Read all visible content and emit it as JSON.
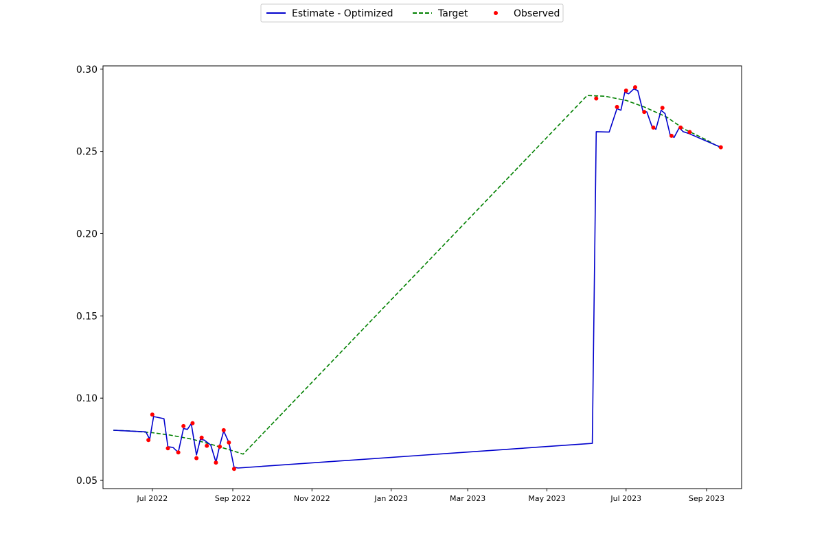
{
  "chart_data": {
    "type": "line",
    "title": "",
    "xlabel": "",
    "ylabel": "",
    "xlim": [
      "2022-05-24",
      "2023-09-28"
    ],
    "ylim": [
      0.045,
      0.302
    ],
    "x_ticks": [
      {
        "date": "2022-07-01",
        "label": "Jul 2022"
      },
      {
        "date": "2022-09-01",
        "label": "Sep 2022"
      },
      {
        "date": "2022-11-01",
        "label": "Nov 2022"
      },
      {
        "date": "2023-01-01",
        "label": "Jan 2023"
      },
      {
        "date": "2023-03-01",
        "label": "Mar 2023"
      },
      {
        "date": "2023-05-01",
        "label": "May 2023"
      },
      {
        "date": "2023-07-01",
        "label": "Jul 2023"
      },
      {
        "date": "2023-09-01",
        "label": "Sep 2023"
      }
    ],
    "y_ticks": [
      {
        "value": 0.05,
        "label": "0.05"
      },
      {
        "value": 0.1,
        "label": "0.10"
      },
      {
        "value": 0.15,
        "label": "0.15"
      },
      {
        "value": 0.2,
        "label": "0.20"
      },
      {
        "value": 0.25,
        "label": "0.25"
      },
      {
        "value": 0.3,
        "label": "0.30"
      }
    ],
    "grid": false,
    "legend_position": "top-center",
    "series": [
      {
        "name": "Estimate - Optimized",
        "style": "solid",
        "color": "#0000cc",
        "points": [
          [
            "2022-06-01",
            0.0805
          ],
          [
            "2022-06-26",
            0.0795
          ],
          [
            "2022-06-29",
            0.075
          ],
          [
            "2022-07-02",
            0.0888
          ],
          [
            "2022-07-10",
            0.0875
          ],
          [
            "2022-07-13",
            0.0705
          ],
          [
            "2022-07-17",
            0.07
          ],
          [
            "2022-07-21",
            0.067
          ],
          [
            "2022-07-25",
            0.0815
          ],
          [
            "2022-07-28",
            0.081
          ],
          [
            "2022-07-31",
            0.0845
          ],
          [
            "2022-08-04",
            0.0655
          ],
          [
            "2022-08-07",
            0.075
          ],
          [
            "2022-08-10",
            0.0745
          ],
          [
            "2022-08-15",
            0.0715
          ],
          [
            "2022-08-19",
            0.061
          ],
          [
            "2022-08-22",
            0.0715
          ],
          [
            "2022-08-25",
            0.08
          ],
          [
            "2022-08-29",
            0.073
          ],
          [
            "2022-09-02",
            0.058
          ],
          [
            "2022-09-05",
            0.0575
          ],
          [
            "2023-06-05",
            0.0725
          ],
          [
            "2023-06-08",
            0.262
          ],
          [
            "2023-06-18",
            0.2618
          ],
          [
            "2023-06-24",
            0.276
          ],
          [
            "2023-06-27",
            0.275
          ],
          [
            "2023-06-30",
            0.286
          ],
          [
            "2023-07-03",
            0.285
          ],
          [
            "2023-07-07",
            0.288
          ],
          [
            "2023-07-10",
            0.287
          ],
          [
            "2023-07-14",
            0.2745
          ],
          [
            "2023-07-17",
            0.274
          ],
          [
            "2023-07-21",
            0.265
          ],
          [
            "2023-07-24",
            0.2635
          ],
          [
            "2023-07-28",
            0.275
          ],
          [
            "2023-07-31",
            0.273
          ],
          [
            "2023-08-04",
            0.26
          ],
          [
            "2023-08-07",
            0.2585
          ],
          [
            "2023-08-11",
            0.2645
          ],
          [
            "2023-08-14",
            0.262
          ],
          [
            "2023-08-18",
            0.261
          ],
          [
            "2023-09-12",
            0.2525
          ]
        ]
      },
      {
        "name": "Target",
        "style": "dashed",
        "color": "#008000",
        "points": [
          [
            "2022-06-01",
            0.0805
          ],
          [
            "2022-06-15",
            0.08
          ],
          [
            "2022-07-01",
            0.079
          ],
          [
            "2022-07-15",
            0.0775
          ],
          [
            "2022-08-01",
            0.075
          ],
          [
            "2022-08-15",
            0.072
          ],
          [
            "2022-09-01",
            0.068
          ],
          [
            "2022-09-09",
            0.066
          ],
          [
            "2023-06-01",
            0.284
          ],
          [
            "2023-06-15",
            0.2835
          ],
          [
            "2023-07-01",
            0.281
          ],
          [
            "2023-07-15",
            0.277
          ],
          [
            "2023-08-01",
            0.271
          ],
          [
            "2023-08-15",
            0.2635
          ],
          [
            "2023-09-01",
            0.257
          ],
          [
            "2023-09-12",
            0.252
          ]
        ]
      },
      {
        "name": "Observed",
        "style": "scatter",
        "color": "#ff0000",
        "points": [
          [
            "2022-06-28",
            0.0745
          ],
          [
            "2022-07-01",
            0.09
          ],
          [
            "2022-07-13",
            0.0695
          ],
          [
            "2022-07-21",
            0.067
          ],
          [
            "2022-07-25",
            0.083
          ],
          [
            "2022-08-01",
            0.0848
          ],
          [
            "2022-08-04",
            0.0635
          ],
          [
            "2022-08-08",
            0.076
          ],
          [
            "2022-08-12",
            0.071
          ],
          [
            "2022-08-19",
            0.0608
          ],
          [
            "2022-08-22",
            0.0705
          ],
          [
            "2022-08-25",
            0.0805
          ],
          [
            "2022-08-29",
            0.073
          ],
          [
            "2022-09-02",
            0.057
          ],
          [
            "2023-06-08",
            0.2822
          ],
          [
            "2023-06-24",
            0.277
          ],
          [
            "2023-07-01",
            0.287
          ],
          [
            "2023-07-08",
            0.289
          ],
          [
            "2023-07-15",
            0.274
          ],
          [
            "2023-07-22",
            0.2645
          ],
          [
            "2023-07-29",
            0.2765
          ],
          [
            "2023-08-05",
            0.2595
          ],
          [
            "2023-08-12",
            0.2645
          ],
          [
            "2023-08-19",
            0.2618
          ],
          [
            "2023-09-12",
            0.2525
          ]
        ]
      }
    ],
    "colors": {
      "axes": "#000000",
      "background": "#ffffff",
      "legend_border": "#cccccc"
    }
  }
}
